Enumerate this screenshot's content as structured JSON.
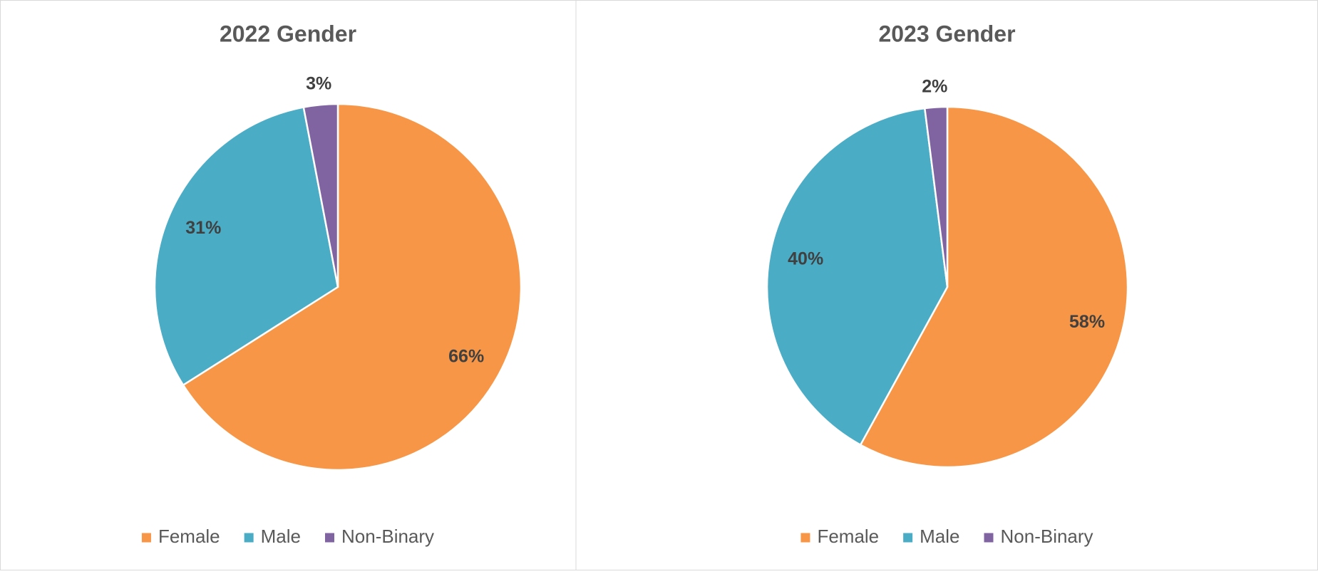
{
  "chart_data": [
    {
      "type": "pie",
      "title": "2022 Gender",
      "categories": [
        "Female",
        "Male",
        "Non-Binary"
      ],
      "values": [
        66,
        31,
        3
      ],
      "value_labels": [
        "66%",
        "31%",
        "3%"
      ],
      "colors": [
        "#F79646",
        "#4BACC6",
        "#8064A2"
      ],
      "legend": "bottom"
    },
    {
      "type": "pie",
      "title": "2023 Gender",
      "categories": [
        "Female",
        "Male",
        "Non-Binary"
      ],
      "values": [
        58,
        40,
        2
      ],
      "value_labels": [
        "58%",
        "40%",
        "2%"
      ],
      "colors": [
        "#F79646",
        "#4BACC6",
        "#8064A2"
      ],
      "legend": "bottom"
    }
  ]
}
